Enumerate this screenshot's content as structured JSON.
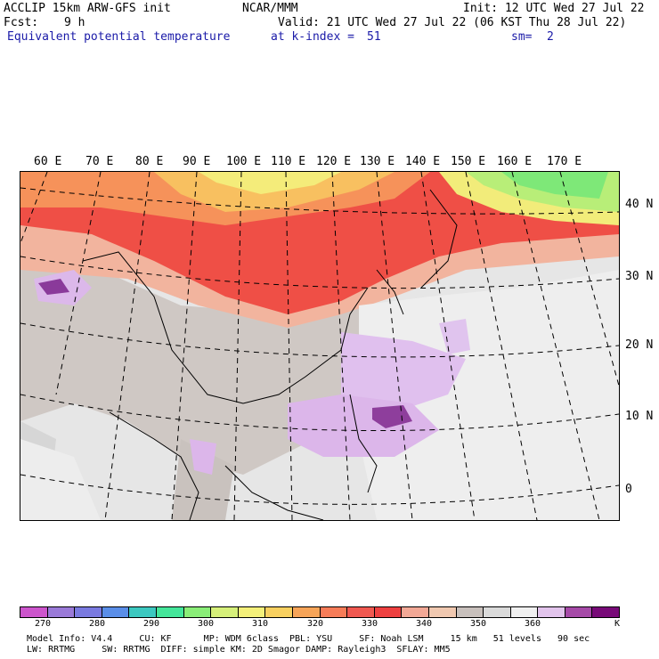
{
  "header": {
    "model_title": "ACCLIP 15km ARW-GFS init",
    "org": "NCAR/MMM",
    "init": "Init: 12 UTC Wed 27 Jul 22",
    "fcst_label": "Fcst:",
    "fcst_value": "9 h",
    "valid": "Valid: 21 UTC Wed 27 Jul 22 (06 KST Thu 28 Jul 22)",
    "field": "Equivalent potential temperature",
    "level_label": "at k-index =",
    "level_value": "51",
    "smooth_label": "sm=",
    "smooth_value": "2"
  },
  "map": {
    "lon_labels": [
      "60 E",
      "70 E",
      "80 E",
      "90 E",
      "100 E",
      "110 E",
      "120 E",
      "130 E",
      "140 E",
      "150 E",
      "160 E",
      "170 E"
    ],
    "lat_labels": [
      "40 N",
      "30 N",
      "20 N",
      "10 N",
      "0"
    ]
  },
  "colorbar": {
    "unit": "K",
    "ticks": [
      "270",
      "280",
      "290",
      "300",
      "310",
      "320",
      "330",
      "340",
      "350",
      "360"
    ],
    "colors": [
      "#cc55cc",
      "#9a7ad8",
      "#7a7ae0",
      "#5a8ee8",
      "#3cc8c0",
      "#44e69a",
      "#8aee78",
      "#d6f07a",
      "#f4f07a",
      "#f8d060",
      "#f6a458",
      "#f67c58",
      "#f05850",
      "#ee4040",
      "#f2a896",
      "#f0c8b0",
      "#c8c0bc",
      "#dadada",
      "#f0f0f0",
      "#e2c4ec",
      "#a64aa8",
      "#780a78"
    ]
  },
  "footer": {
    "line1": "Model Info: V4.4     CU: KF      MP: WDM 6class  PBL: YSU     SF: Noah LSM     15 km   51 levels   90 sec",
    "line2": "LW: RRTMG     SW: RRTMG  DIFF: simple KM: 2D Smagor DAMP: Rayleigh3  SFLAY: MM5"
  }
}
